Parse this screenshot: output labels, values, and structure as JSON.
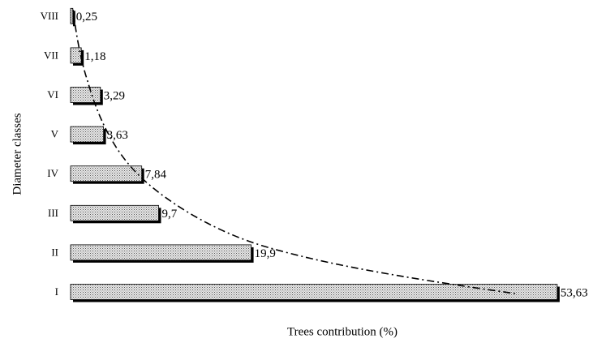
{
  "chart_data": {
    "type": "bar",
    "orientation": "horizontal",
    "xlabel": "Trees contribution (%)",
    "ylabel": "Diameter classes",
    "categories": [
      "I",
      "II",
      "III",
      "IV",
      "V",
      "VI",
      "VII",
      "VIII"
    ],
    "values": [
      53.63,
      19.9,
      9.7,
      7.84,
      3.63,
      3.29,
      1.18,
      0.25
    ],
    "value_labels": [
      "53,63",
      "19,9",
      "9,7",
      "7,84",
      "3,63",
      "3,29",
      "1,18",
      "0,25"
    ],
    "xlim": [
      0,
      54
    ]
  }
}
